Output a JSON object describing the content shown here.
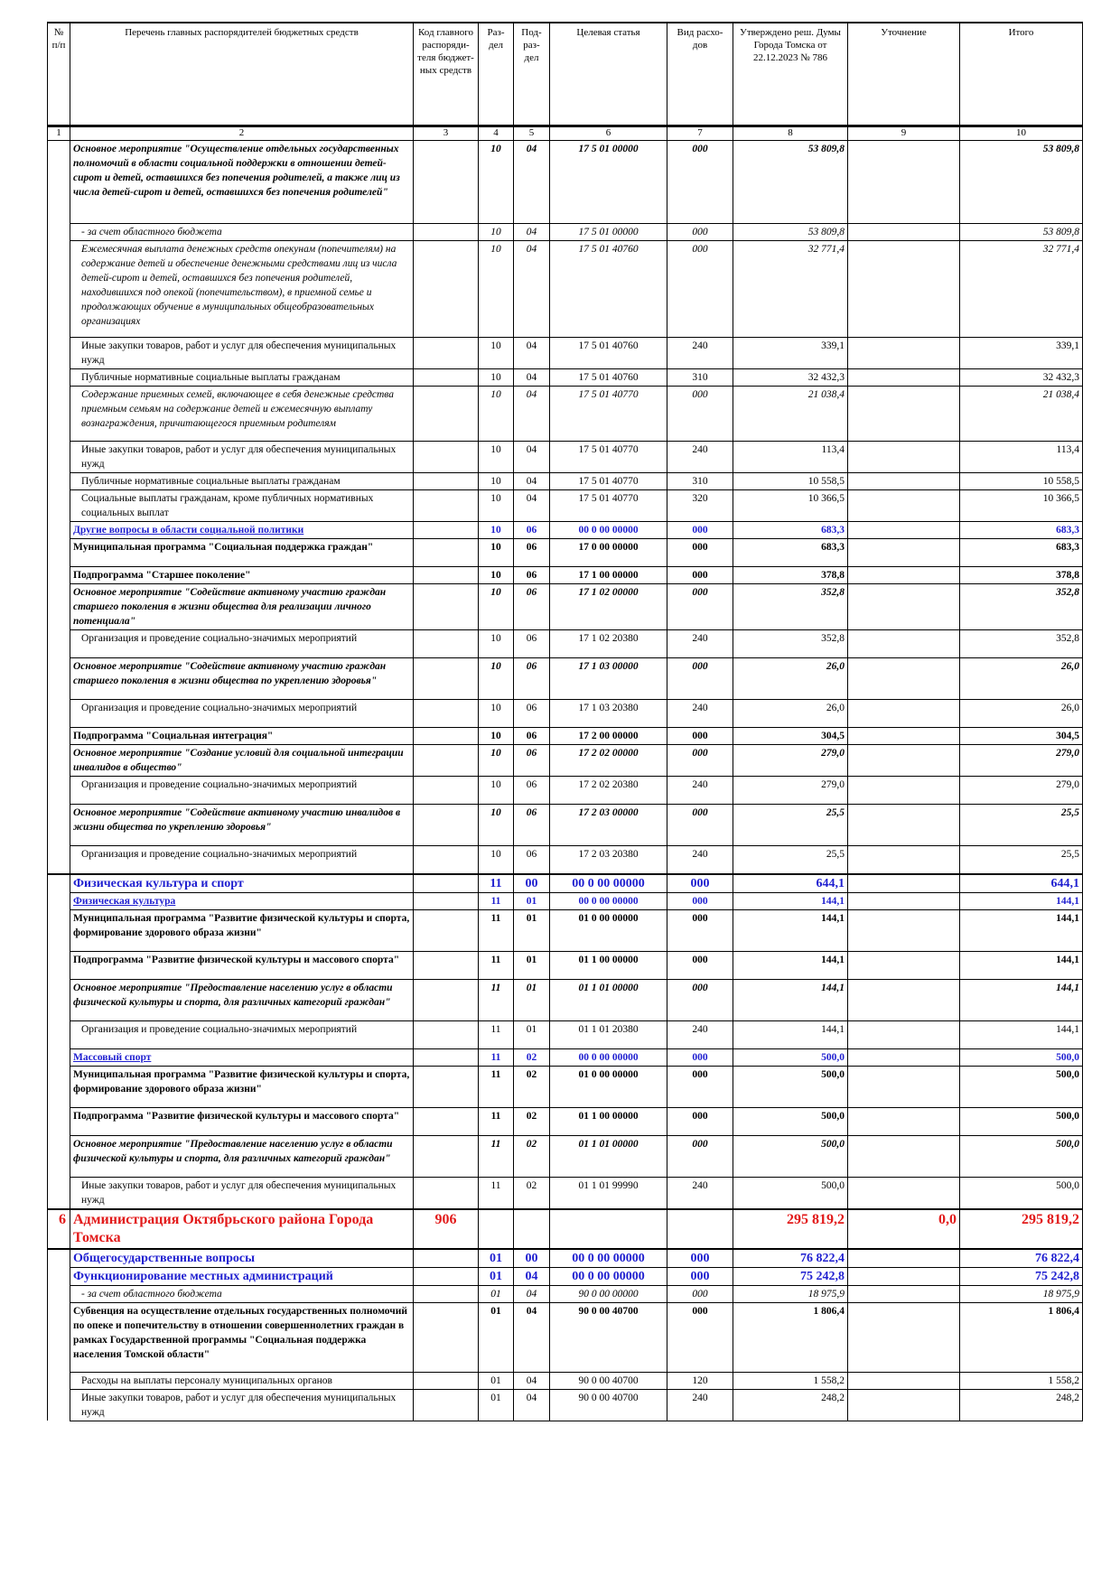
{
  "header": {
    "num": "№ п/п",
    "name": "Перечень главных распорядителей бюджетных средств",
    "code": "Код главного распоряди-теля бюджет-ных средств",
    "razdel": "Раз-дел",
    "podrazdel": "Под-раз-дел",
    "target": "Целевая статья",
    "vid": "Вид расхо-дов",
    "approved": "Утверждено реш. Думы Города Томска от 22.12.2023 № 786",
    "utochnenie": "Уточнение",
    "itogo": "Итого"
  },
  "column_numbers": [
    "1",
    "2",
    "3",
    "4",
    "5",
    "6",
    "7",
    "8",
    "9",
    "10"
  ],
  "rows": [
    {
      "style": "bi",
      "h": 92,
      "name": "Основное мероприятие \"Осуществление отдельных государственных полномочий в области социальной поддержки в отношении детей-сирот и детей, оставшихся без попечения родителей, а также лиц из числа детей-сирот и детей, оставшихся без попечения родителей\"",
      "razdel": "10",
      "podrazdel": "04",
      "target": "17 5 01 00000",
      "vid": "000",
      "approved": "53 809,8",
      "itogo": "53 809,8"
    },
    {
      "style": "i",
      "h": 16,
      "name": "- за счет областного бюджета",
      "razdel": "10",
      "podrazdel": "04",
      "target": "17 5 01 00000",
      "vid": "000",
      "approved": "53 809,8",
      "itogo": "53 809,8"
    },
    {
      "style": "i",
      "h": 107,
      "name": "Ежемесячная выплата денежных средств опекунам (попечителям) на содержание детей и обеспечение денежными средствами лиц из числа детей-сирот и детей, оставшихся без попечения родителей, находившихся под опекой (попечительством), в приемной семье и продолжающих обучение в муниципальных общеобразовательных организациях",
      "razdel": "10",
      "podrazdel": "04",
      "target": "17 5 01 40760",
      "vid": "000",
      "approved": "32 771,4",
      "itogo": "32 771,4"
    },
    {
      "style": "n",
      "h": 31,
      "name": "Иные закупки товаров, работ и услуг для обеспечения муниципальных нужд",
      "razdel": "10",
      "podrazdel": "04",
      "target": "17 5 01 40760",
      "vid": "240",
      "approved": "339,1",
      "itogo": "339,1"
    },
    {
      "style": "n",
      "h": 16,
      "name": "Публичные нормативные социальные выплаты гражданам",
      "razdel": "10",
      "podrazdel": "04",
      "target": "17 5 01 40760",
      "vid": "310",
      "approved": "32 432,3",
      "itogo": "32 432,3"
    },
    {
      "style": "i",
      "h": 61,
      "name": "Содержание приемных семей, включающее в себя денежные средства приемным семьям на содержание детей и ежемесячную выплату вознаграждения, причитающегося приемным родителям",
      "razdel": "10",
      "podrazdel": "04",
      "target": "17 5 01 40770",
      "vid": "000",
      "approved": "21 038,4",
      "itogo": "21 038,4"
    },
    {
      "style": "n",
      "h": 31,
      "name": "Иные закупки товаров, работ и услуг для обеспечения муниципальных нужд",
      "razdel": "10",
      "podrazdel": "04",
      "target": "17 5 01 40770",
      "vid": "240",
      "approved": "113,4",
      "itogo": "113,4"
    },
    {
      "style": "n",
      "h": 16,
      "name": "Публичные нормативные социальные выплаты гражданам",
      "razdel": "10",
      "podrazdel": "04",
      "target": "17 5 01 40770",
      "vid": "310",
      "approved": "10 558,5",
      "itogo": "10 558,5"
    },
    {
      "style": "n",
      "h": 31,
      "name": "Социальные выплаты гражданам, кроме публичных нормативных социальных выплат",
      "razdel": "10",
      "podrazdel": "04",
      "target": "17 5 01 40770",
      "vid": "320",
      "approved": "10 366,5",
      "itogo": "10 366,5"
    },
    {
      "style": "sec",
      "h": 16,
      "name": "Другие вопросы в области социальной политики",
      "razdel": "10",
      "podrazdel": "06",
      "target": "00 0 00 00000",
      "vid": "000",
      "approved": "683,3",
      "itogo": "683,3"
    },
    {
      "style": "b",
      "h": 31,
      "name": "Муниципальная программа \"Социальная поддержка граждан\"",
      "razdel": "10",
      "podrazdel": "06",
      "target": "17 0 00 00000",
      "vid": "000",
      "approved": "683,3",
      "itogo": "683,3"
    },
    {
      "style": "b",
      "h": 16,
      "name": "Подпрограмма \"Старшее поколение\"",
      "razdel": "10",
      "podrazdel": "06",
      "target": "17 1 00 00000",
      "vid": "000",
      "approved": "378,8",
      "itogo": "378,8"
    },
    {
      "style": "bi",
      "h": 46,
      "name": "Основное мероприятие \"Содействие активному участию граждан старшего поколения в жизни общества для реализации личного потенциала\"",
      "razdel": "10",
      "podrazdel": "06",
      "target": "17 1 02 00000",
      "vid": "000",
      "approved": "352,8",
      "itogo": "352,8"
    },
    {
      "style": "n",
      "h": 31,
      "name": "Организация и проведение социально-значимых мероприятий",
      "razdel": "10",
      "podrazdel": "06",
      "target": "17 1 02 20380",
      "vid": "240",
      "approved": "352,8",
      "itogo": "352,8"
    },
    {
      "style": "bi",
      "h": 46,
      "name": "Основное мероприятие \"Содействие активному участию граждан старшего поколения в жизни общества по укреплению здоровья\"",
      "razdel": "10",
      "podrazdel": "06",
      "target": "17 1 03 00000",
      "vid": "000",
      "approved": "26,0",
      "itogo": "26,0"
    },
    {
      "style": "n",
      "h": 31,
      "name": "Организация и проведение социально-значимых мероприятий",
      "razdel": "10",
      "podrazdel": "06",
      "target": "17 1 03 20380",
      "vid": "240",
      "approved": "26,0",
      "itogo": "26,0"
    },
    {
      "style": "b",
      "h": 16,
      "name": "Подпрограмма \"Социальная интеграция\"",
      "razdel": "10",
      "podrazdel": "06",
      "target": "17 2 00 00000",
      "vid": "000",
      "approved": "304,5",
      "itogo": "304,5"
    },
    {
      "style": "bi",
      "h": 31,
      "name": "Основное мероприятие \"Создание условий для социальной интеграции инвалидов в общество\"",
      "razdel": "10",
      "podrazdel": "06",
      "target": "17 2 02 00000",
      "vid": "000",
      "approved": "279,0",
      "itogo": "279,0"
    },
    {
      "style": "n",
      "h": 31,
      "name": "Организация и проведение социально-значимых мероприятий",
      "razdel": "10",
      "podrazdel": "06",
      "target": "17 2 02 20380",
      "vid": "240",
      "approved": "279,0",
      "itogo": "279,0"
    },
    {
      "style": "bi",
      "h": 46,
      "name": "Основное мероприятие \"Содействие активному участию инвалидов в жизни общества по укреплению здоровья\"",
      "razdel": "10",
      "podrazdel": "06",
      "target": "17 2 03 00000",
      "vid": "000",
      "approved": "25,5",
      "itogo": "25,5"
    },
    {
      "style": "n",
      "h": 31,
      "name": "Организация и проведение социально-значимых мероприятий",
      "razdel": "10",
      "podrazdel": "06",
      "target": "17 2 03 20380",
      "vid": "240",
      "approved": "25,5",
      "itogo": "25,5"
    },
    {
      "style": "sec big topline",
      "h": 17,
      "name": "Физическая культура и спорт",
      "razdel": "11",
      "podrazdel": "00",
      "target": "00 0 00 00000",
      "vid": "000",
      "approved": "644,1",
      "itogo": "644,1"
    },
    {
      "style": "sec",
      "h": 16,
      "name": "Физическая культура",
      "razdel": "11",
      "podrazdel": "01",
      "target": "00 0 00 00000",
      "vid": "000",
      "approved": "144,1",
      "itogo": "144,1"
    },
    {
      "style": "b",
      "h": 46,
      "name": "Муниципальная программа \"Развитие физической культуры и спорта, формирование здорового образа жизни\"",
      "razdel": "11",
      "podrazdel": "01",
      "target": "01 0 00 00000",
      "vid": "000",
      "approved": "144,1",
      "itogo": "144,1"
    },
    {
      "style": "b",
      "h": 31,
      "name": "Подпрограмма \"Развитие физической культуры и массового спорта\"",
      "razdel": "11",
      "podrazdel": "01",
      "target": "01 1 00 00000",
      "vid": "000",
      "approved": "144,1",
      "itogo": "144,1"
    },
    {
      "style": "bi",
      "h": 46,
      "name": "Основное мероприятие \"Предоставление населению услуг в области физической культуры и спорта, для различных категорий граждан\"",
      "razdel": "11",
      "podrazdel": "01",
      "target": "01 1 01 00000",
      "vid": "000",
      "approved": "144,1",
      "itogo": "144,1"
    },
    {
      "style": "n",
      "h": 31,
      "name": "Организация и проведение социально-значимых мероприятий",
      "razdel": "11",
      "podrazdel": "01",
      "target": "01 1 01 20380",
      "vid": "240",
      "approved": "144,1",
      "itogo": "144,1"
    },
    {
      "style": "sec",
      "h": 16,
      "name": "Массовый спорт",
      "razdel": "11",
      "podrazdel": "02",
      "target": "00 0 00 00000",
      "vid": "000",
      "approved": "500,0",
      "itogo": "500,0"
    },
    {
      "style": "b",
      "h": 46,
      "name": "Муниципальная программа \"Развитие физической культуры и спорта, формирование здорового образа жизни\"",
      "razdel": "11",
      "podrazdel": "02",
      "target": "01 0 00 00000",
      "vid": "000",
      "approved": "500,0",
      "itogo": "500,0"
    },
    {
      "style": "b",
      "h": 31,
      "name": "Подпрограмма \"Развитие физической культуры и массового спорта\"",
      "razdel": "11",
      "podrazdel": "02",
      "target": "01 1 00 00000",
      "vid": "000",
      "approved": "500,0",
      "itogo": "500,0"
    },
    {
      "style": "bi",
      "h": 46,
      "name": "Основное мероприятие \"Предоставление населению услуг в области физической культуры и спорта, для различных категорий граждан\"",
      "razdel": "11",
      "podrazdel": "02",
      "target": "01 1 01 00000",
      "vid": "000",
      "approved": "500,0",
      "itogo": "500,0"
    },
    {
      "style": "n",
      "h": 31,
      "name": "Иные закупки товаров, работ и услуг для обеспечения муниципальных нужд",
      "razdel": "11",
      "podrazdel": "02",
      "target": "01 1 01 99990",
      "vid": "240",
      "approved": "500,0",
      "itogo": "500,0"
    },
    {
      "style": "org topline",
      "h": 42,
      "num": "6",
      "name": "Администрация Октябрьского района Города Томска",
      "code": "906",
      "approved": "295 819,2",
      "utochnenie": "0,0",
      "itogo": "295 819,2"
    },
    {
      "style": "sec big topline",
      "h": 17,
      "name": "Общегосударственные вопросы",
      "razdel": "01",
      "podrazdel": "00",
      "target": "00 0 00 00000",
      "vid": "000",
      "approved": "76 822,4",
      "itogo": "76 822,4"
    },
    {
      "style": "sec big",
      "h": 16,
      "name": "Функционирование местных администраций",
      "razdel": "01",
      "podrazdel": "04",
      "target": "00 0 00 00000",
      "vid": "000",
      "approved": "75 242,8",
      "itogo": "75 242,8"
    },
    {
      "style": "i",
      "h": 16,
      "name": "- за счет областного бюджета",
      "razdel": "01",
      "podrazdel": "04",
      "target": "90 0 00 00000",
      "vid": "000",
      "approved": "18 975,9",
      "itogo": "18 975,9"
    },
    {
      "style": "b",
      "h": 77,
      "name": "Субвенция на осуществление отдельных государственных полномочий по опеке и попечительству в отношении совершеннолетних граждан в рамках Государственной программы \"Социальная поддержка населения Томской области\"",
      "razdel": "01",
      "podrazdel": "04",
      "target": "90 0 00 40700",
      "vid": "000",
      "approved": "1 806,4",
      "itogo": "1 806,4"
    },
    {
      "style": "n",
      "h": 16,
      "name": "Расходы на выплаты персоналу муниципальных органов",
      "razdel": "01",
      "podrazdel": "04",
      "target": "90 0 00 40700",
      "vid": "120",
      "approved": "1 558,2",
      "itogo": "1 558,2"
    },
    {
      "style": "n",
      "h": 31,
      "name": "Иные закупки товаров, работ и услуг для обеспечения муниципальных нужд",
      "razdel": "01",
      "podrazdel": "04",
      "target": "90 0 00 40700",
      "vid": "240",
      "approved": "248,2",
      "itogo": "248,2"
    }
  ]
}
